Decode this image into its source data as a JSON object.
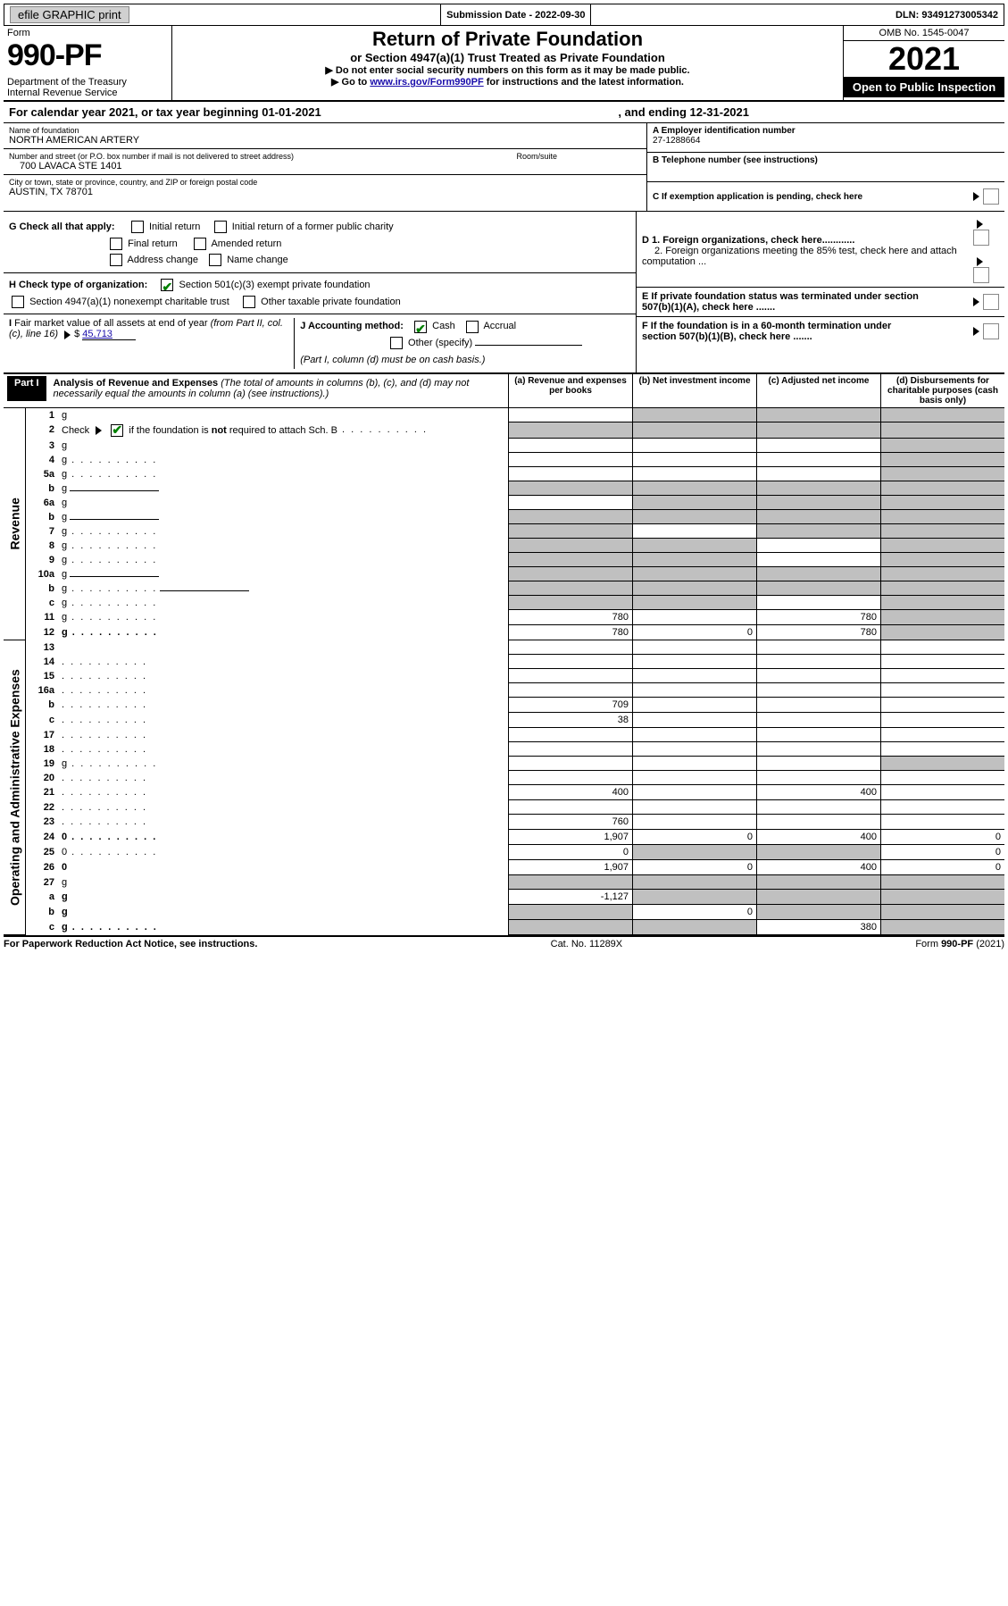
{
  "top_bar": {
    "efile": "efile GRAPHIC print",
    "submission_date_label": "Submission Date - 2022-09-30",
    "dln": "DLN: 93491273005342"
  },
  "header": {
    "form_word": "Form",
    "form_number": "990-PF",
    "dept": "Department of the Treasury\nInternal Revenue Service",
    "title": "Return of Private Foundation",
    "subtitle": "or Section 4947(a)(1) Trust Treated as Private Foundation",
    "line1": "▶ Do not enter social security numbers on this form as it may be made public.",
    "line2_pre": "▶ Go to ",
    "line2_link": "www.irs.gov/Form990PF",
    "line2_post": " for instructions and the latest information.",
    "omb": "OMB No. 1545-0047",
    "year": "2021",
    "open_public": "Open to Public Inspection"
  },
  "cal_year": {
    "text": "For calendar year 2021, or tax year beginning 01-01-2021",
    "ending": ", and ending 12-31-2021"
  },
  "info_left": {
    "name_label": "Name of foundation",
    "name": "NORTH AMERICAN ARTERY",
    "addr_label": "Number and street (or P.O. box number if mail is not delivered to street address)",
    "addr": "700 LAVACA STE 1401",
    "room_label": "Room/suite",
    "city_label": "City or town, state or province, country, and ZIP or foreign postal code",
    "city": "AUSTIN, TX  78701"
  },
  "info_right": {
    "A": "A Employer identification number",
    "A_val": "27-1288664",
    "B": "B Telephone number (see instructions)",
    "C": "C If exemption application is pending, check here",
    "D1": "D 1. Foreign organizations, check here............",
    "D2": "2. Foreign organizations meeting the 85% test, check here and attach computation ...",
    "E": "E  If private foundation status was terminated under section 507(b)(1)(A), check here .......",
    "F": "F  If the foundation is in a 60-month termination under section 507(b)(1)(B), check here ......."
  },
  "G": {
    "label": "G Check all that apply:",
    "opts": [
      "Initial return",
      "Initial return of a former public charity",
      "Final return",
      "Amended return",
      "Address change",
      "Name change"
    ]
  },
  "H": {
    "label": "H Check type of organization:",
    "opt1": "Section 501(c)(3) exempt private foundation",
    "opt2": "Section 4947(a)(1) nonexempt charitable trust",
    "opt3": "Other taxable private foundation"
  },
  "I": {
    "label": "I Fair market value of all assets at end of year (from Part II, col. (c), line 16) ▶ $",
    "val": "45,713"
  },
  "J": {
    "label": "J Accounting method:",
    "opts": [
      "Cash",
      "Accrual",
      "Other (specify)"
    ],
    "note": "(Part I, column (d) must be on cash basis.)"
  },
  "part1": {
    "label": "Part I",
    "title": "Analysis of Revenue and Expenses",
    "title_note": "(The total of amounts in columns (b), (c), and (d) may not necessarily equal the amounts in column (a) (see instructions).)",
    "cols": {
      "a": "(a)   Revenue and expenses per books",
      "b": "(b)   Net investment income",
      "c": "(c)   Adjusted net income",
      "d": "(d)   Disbursements for charitable purposes (cash basis only)"
    }
  },
  "section_labels": {
    "revenue": "Revenue",
    "expenses": "Operating and Administrative Expenses"
  },
  "rows": [
    {
      "n": "1",
      "d": "g",
      "a": "",
      "b": "g",
      "c": "g"
    },
    {
      "n": "2",
      "d": "g",
      "a": "g",
      "b": "g",
      "c": "g",
      "dots": true
    },
    {
      "n": "3",
      "d": "g",
      "a": "",
      "b": "",
      "c": ""
    },
    {
      "n": "4",
      "d": "g",
      "a": "",
      "b": "",
      "c": "",
      "dots": true
    },
    {
      "n": "5a",
      "d": "g",
      "a": "",
      "b": "",
      "c": "",
      "dots": true
    },
    {
      "n": "b",
      "d": "g",
      "a": "g",
      "b": "g",
      "c": "g",
      "inp": true
    },
    {
      "n": "6a",
      "d": "g",
      "a": "",
      "b": "g",
      "c": "g"
    },
    {
      "n": "b",
      "d": "g",
      "a": "g",
      "b": "g",
      "c": "g",
      "inp": true
    },
    {
      "n": "7",
      "d": "g",
      "a": "g",
      "b": "",
      "c": "g",
      "dots": true
    },
    {
      "n": "8",
      "d": "g",
      "a": "g",
      "b": "g",
      "c": "",
      "dots": true
    },
    {
      "n": "9",
      "d": "g",
      "a": "g",
      "b": "g",
      "c": "",
      "dots": true
    },
    {
      "n": "10a",
      "d": "g",
      "a": "g",
      "b": "g",
      "c": "g",
      "inp": true
    },
    {
      "n": "b",
      "d": "g",
      "a": "g",
      "b": "g",
      "c": "g",
      "inp": true,
      "dots": true
    },
    {
      "n": "c",
      "d": "g",
      "a": "g",
      "b": "g",
      "c": "",
      "dots": true
    },
    {
      "n": "11",
      "d": "g",
      "a": "780",
      "b": "",
      "c": "780",
      "dots": true
    },
    {
      "n": "12",
      "d": "g",
      "a": "780",
      "b": "0",
      "c": "780",
      "bold": true,
      "dots": true
    },
    {
      "n": "13",
      "d": "",
      "a": "",
      "b": "",
      "c": ""
    },
    {
      "n": "14",
      "d": "",
      "a": "",
      "b": "",
      "c": "",
      "dots": true
    },
    {
      "n": "15",
      "d": "",
      "a": "",
      "b": "",
      "c": "",
      "dots": true
    },
    {
      "n": "16a",
      "d": "",
      "a": "",
      "b": "",
      "c": "",
      "dots": true
    },
    {
      "n": "b",
      "d": "",
      "a": "709",
      "b": "",
      "c": "",
      "dots": true
    },
    {
      "n": "c",
      "d": "",
      "a": "38",
      "b": "",
      "c": "",
      "dots": true
    },
    {
      "n": "17",
      "d": "",
      "a": "",
      "b": "",
      "c": "",
      "dots": true
    },
    {
      "n": "18",
      "d": "",
      "a": "",
      "b": "",
      "c": "",
      "dots": true
    },
    {
      "n": "19",
      "d": "g",
      "a": "",
      "b": "",
      "c": "",
      "dots": true
    },
    {
      "n": "20",
      "d": "",
      "a": "",
      "b": "",
      "c": "",
      "dots": true
    },
    {
      "n": "21",
      "d": "",
      "a": "400",
      "b": "",
      "c": "400",
      "dots": true
    },
    {
      "n": "22",
      "d": "",
      "a": "",
      "b": "",
      "c": "",
      "dots": true
    },
    {
      "n": "23",
      "d": "",
      "a": "760",
      "b": "",
      "c": "",
      "dots": true
    },
    {
      "n": "24",
      "d": "0",
      "a": "1,907",
      "b": "0",
      "c": "400",
      "bold": true,
      "dots": true
    },
    {
      "n": "25",
      "d": "0",
      "a": "0",
      "b": "g",
      "c": "g",
      "dots": true
    },
    {
      "n": "26",
      "d": "0",
      "a": "1,907",
      "b": "0",
      "c": "400",
      "bold": true
    },
    {
      "n": "27",
      "d": "g",
      "a": "g",
      "b": "g",
      "c": "g"
    },
    {
      "n": "a",
      "d": "g",
      "a": "-1,127",
      "b": "g",
      "c": "g",
      "bold": true
    },
    {
      "n": "b",
      "d": "g",
      "a": "g",
      "b": "0",
      "c": "g",
      "bold": true
    },
    {
      "n": "c",
      "d": "g",
      "a": "g",
      "b": "g",
      "c": "380",
      "bold": true,
      "dots": true
    }
  ],
  "footer": {
    "left": "For Paperwork Reduction Act Notice, see instructions.",
    "mid": "Cat. No. 11289X",
    "right_pre": "Form ",
    "right_form": "990-PF",
    "right_post": " (2021)"
  },
  "colors": {
    "gray_cell": "#c0c0c0",
    "link": "#1a0dab",
    "check_green": "#008000"
  }
}
